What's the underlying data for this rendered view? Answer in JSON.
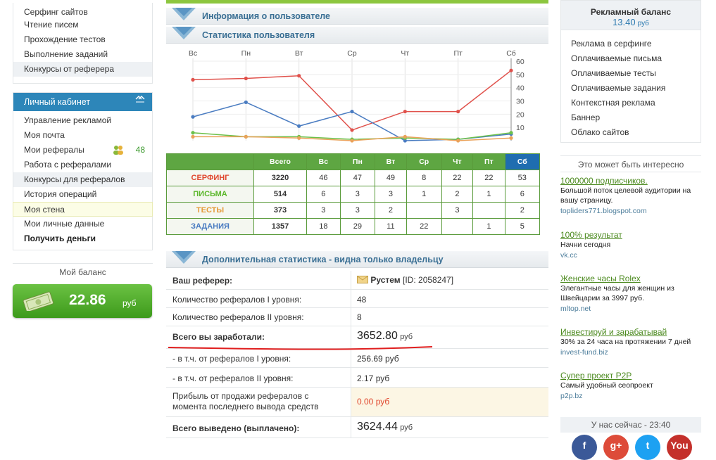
{
  "left_menu_top": {
    "items": [
      "Серфинг сайтов",
      "Чтение писем",
      "Прохождение тестов",
      "Выполнение заданий",
      "Конкурсы от реферера"
    ]
  },
  "cabinet": {
    "title": "Личный кабинет",
    "items": [
      "Управление рекламой",
      "Моя почта",
      "Мои рефералы",
      "Работа с рефералами",
      "Конкурсы для рефералов",
      "История операций",
      "Моя стена",
      "Мои личные данные",
      "Получить деньги"
    ],
    "referrals_count": "48"
  },
  "my_balance": {
    "title": "Мой баланс",
    "amount": "22.86",
    "currency": "руб"
  },
  "sections": {
    "user_info": "Информация о пользователе",
    "user_stats": "Статистика пользователя",
    "extra_stats": "Дополнительная статистика - видна только владельцу"
  },
  "chart_data": {
    "type": "line",
    "categories": [
      "Вс",
      "Пн",
      "Вт",
      "Ср",
      "Чт",
      "Пт",
      "Сб"
    ],
    "ylim": [
      0,
      60
    ],
    "yticks": [
      10,
      20,
      30,
      40,
      50,
      60
    ],
    "series": [
      {
        "name": "СЕРФИНГ",
        "color": "#e0514b",
        "values": [
          46,
          47,
          49,
          8,
          22,
          22,
          53
        ]
      },
      {
        "name": "ЗАДАНИЯ",
        "color": "#4a7cc1",
        "values": [
          18,
          29,
          11,
          22,
          0,
          1,
          5
        ]
      },
      {
        "name": "ПИСЬМА",
        "color": "#6cc04a",
        "values": [
          6,
          3,
          3,
          1,
          2,
          1,
          6
        ]
      },
      {
        "name": "ТЕСТЫ",
        "color": "#eaa25a",
        "values": [
          3,
          3,
          2,
          0,
          3,
          0,
          2
        ]
      }
    ]
  },
  "stats_table": {
    "headers": [
      "",
      "Всего",
      "Вс",
      "Пн",
      "Вт",
      "Ср",
      "Чт",
      "Пт",
      "Сб"
    ],
    "rows": [
      {
        "label": "СЕРФИНГ",
        "cls": "c-serf",
        "cells": [
          "3220",
          "46",
          "47",
          "49",
          "8",
          "22",
          "22",
          "53"
        ]
      },
      {
        "label": "ПИСЬМА",
        "cls": "c-pis",
        "cells": [
          "514",
          "6",
          "3",
          "3",
          "1",
          "2",
          "1",
          "6"
        ]
      },
      {
        "label": "ТЕСТЫ",
        "cls": "c-tst",
        "cells": [
          "373",
          "3",
          "3",
          "2",
          "",
          "3",
          "",
          "2"
        ]
      },
      {
        "label": "ЗАДАНИЯ",
        "cls": "c-zad",
        "cells": [
          "1357",
          "18",
          "29",
          "11",
          "22",
          "",
          "1",
          "5"
        ]
      }
    ]
  },
  "extra": {
    "referrer_label": "Ваш реферер:",
    "referrer_name": "Рустем",
    "referrer_id": "[ID: 2058247]",
    "lvl1_label": "Количество рефералов I уровня:",
    "lvl1_value": "48",
    "lvl2_label": "Количество рефералов II уровня:",
    "lvl2_value": "8",
    "earned_label": "Всего вы заработали:",
    "earned_value": "3652.80",
    "cur": "руб",
    "from1_label": "- в т.ч. от рефералов I уровня:",
    "from1_value": "256.69",
    "from2_label": "- в т.ч. от рефералов II уровня:",
    "from2_value": "2.17",
    "sale_label": "Прибыль от продажи рефералов с момента последнего вывода средств",
    "sale_value": "0.00",
    "paid_label": "Всего выведено (выплачено):",
    "paid_value": "3624.44"
  },
  "ad_balance": {
    "title": "Рекламный баланс",
    "amount": "13.40",
    "currency": "руб"
  },
  "right_menu": [
    "Реклама в серфинге",
    "Оплачиваемые письма",
    "Оплачиваемые тесты",
    "Оплачиваемые задания",
    "Контекстная реклама",
    "Баннер",
    "Облако сайтов"
  ],
  "interest_title": "Это может быть интересно",
  "ads": [
    {
      "title": "1000000 подписчиков.",
      "desc": "Большой поток целевой аудитории на вашу страницу.",
      "url": "topliders771.blogspot.com"
    },
    {
      "title": "100% результат",
      "desc": "Начни сегодня",
      "url": "vk.cc"
    },
    {
      "title": "Женские часы Rolex",
      "desc": "Элегантные часы для женщин из Швейцарии за 3997 руб.",
      "url": "mltop.net"
    },
    {
      "title": "Инвестируй и зарабатывай",
      "desc": "30% за 24 часа на протяжении 7 дней",
      "url": "invest-fund.biz"
    },
    {
      "title": "Супер проект P2P",
      "desc": "Самый удобный сеопроект",
      "url": "p2p.bz"
    }
  ],
  "now_online": "У нас сейчас - 23:40",
  "social": [
    {
      "name": "facebook-icon",
      "color": "#3b5998",
      "glyph": "f"
    },
    {
      "name": "google-plus-icon",
      "color": "#dd4b39",
      "glyph": "g+"
    },
    {
      "name": "twitter-icon",
      "color": "#1da1f2",
      "glyph": "t"
    },
    {
      "name": "youtube-icon",
      "color": "#c4302b",
      "glyph": "You"
    }
  ]
}
